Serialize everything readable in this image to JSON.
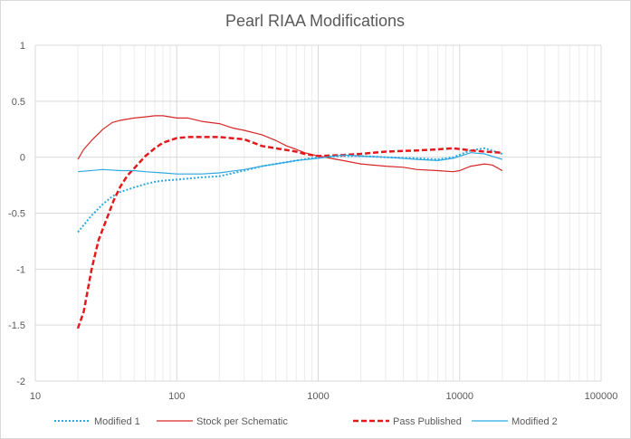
{
  "chart_data": {
    "type": "line",
    "title": "Pearl RIAA Modifications",
    "x_scale": "log",
    "xlim": [
      10,
      100000
    ],
    "ylim": [
      -2,
      1
    ],
    "x_ticks": [
      10,
      100,
      1000,
      10000,
      100000
    ],
    "x_tick_labels": [
      "10",
      "100",
      "1000",
      "10000",
      "100000"
    ],
    "y_ticks": [
      1,
      0.5,
      0,
      -0.5,
      -1,
      -1.5,
      -2
    ],
    "y_tick_labels": [
      "1",
      "0.5",
      "0",
      "-0.5",
      "-1",
      "-1.5",
      "-2"
    ],
    "grid": "major and minor vertical, major horizontal",
    "legend_position": "bottom",
    "series": [
      {
        "name": "Modified 1",
        "color": "#2fa8e0",
        "style": "dotted",
        "points": [
          [
            20,
            -0.67
          ],
          [
            25,
            -0.52
          ],
          [
            30,
            -0.42
          ],
          [
            35,
            -0.35
          ],
          [
            40,
            -0.31
          ],
          [
            50,
            -0.27
          ],
          [
            60,
            -0.24
          ],
          [
            70,
            -0.22
          ],
          [
            80,
            -0.21
          ],
          [
            100,
            -0.2
          ],
          [
            150,
            -0.18
          ],
          [
            200,
            -0.17
          ],
          [
            300,
            -0.12
          ],
          [
            400,
            -0.08
          ],
          [
            500,
            -0.06
          ],
          [
            700,
            -0.03
          ],
          [
            1000,
            0.0
          ],
          [
            1500,
            0.01
          ],
          [
            2000,
            0.01
          ],
          [
            3000,
            0.0
          ],
          [
            5000,
            -0.01
          ],
          [
            7000,
            -0.02
          ],
          [
            9000,
            0.0
          ],
          [
            12000,
            0.06
          ],
          [
            15000,
            0.08
          ],
          [
            20000,
            0.03
          ]
        ]
      },
      {
        "name": "Stock per Schematic",
        "color": "#d62728",
        "style": "solid",
        "points": [
          [
            20,
            -0.02
          ],
          [
            22,
            0.07
          ],
          [
            25,
            0.15
          ],
          [
            30,
            0.25
          ],
          [
            35,
            0.31
          ],
          [
            40,
            0.33
          ],
          [
            50,
            0.35
          ],
          [
            60,
            0.36
          ],
          [
            70,
            0.37
          ],
          [
            80,
            0.37
          ],
          [
            100,
            0.35
          ],
          [
            120,
            0.35
          ],
          [
            150,
            0.32
          ],
          [
            200,
            0.3
          ],
          [
            250,
            0.26
          ],
          [
            300,
            0.24
          ],
          [
            400,
            0.2
          ],
          [
            500,
            0.15
          ],
          [
            600,
            0.1
          ],
          [
            700,
            0.07
          ],
          [
            800,
            0.04
          ],
          [
            1000,
            0.01
          ],
          [
            1500,
            -0.03
          ],
          [
            2000,
            -0.06
          ],
          [
            3000,
            -0.08
          ],
          [
            4000,
            -0.09
          ],
          [
            5000,
            -0.11
          ],
          [
            7000,
            -0.12
          ],
          [
            9000,
            -0.13
          ],
          [
            10000,
            -0.12
          ],
          [
            12000,
            -0.08
          ],
          [
            15000,
            -0.06
          ],
          [
            17000,
            -0.07
          ],
          [
            20000,
            -0.12
          ]
        ]
      },
      {
        "name": "Pass Published",
        "color": "#e31a1c",
        "style": "dashed",
        "points": [
          [
            20,
            -1.53
          ],
          [
            22,
            -1.38
          ],
          [
            25,
            -1.0
          ],
          [
            28,
            -0.74
          ],
          [
            32,
            -0.55
          ],
          [
            36,
            -0.38
          ],
          [
            40,
            -0.26
          ],
          [
            45,
            -0.16
          ],
          [
            50,
            -0.1
          ],
          [
            60,
            0.01
          ],
          [
            70,
            0.08
          ],
          [
            80,
            0.13
          ],
          [
            100,
            0.17
          ],
          [
            120,
            0.18
          ],
          [
            150,
            0.18
          ],
          [
            200,
            0.18
          ],
          [
            300,
            0.16
          ],
          [
            400,
            0.1
          ],
          [
            500,
            0.08
          ],
          [
            700,
            0.05
          ],
          [
            800,
            0.03
          ],
          [
            1000,
            0.01
          ],
          [
            1500,
            0.02
          ],
          [
            2000,
            0.03
          ],
          [
            3000,
            0.05
          ],
          [
            5000,
            0.06
          ],
          [
            7000,
            0.07
          ],
          [
            9000,
            0.08
          ],
          [
            12000,
            0.06
          ],
          [
            15000,
            0.05
          ],
          [
            20000,
            0.04
          ]
        ]
      },
      {
        "name": "Modified 2",
        "color": "#2fa8e0",
        "style": "solid",
        "points": [
          [
            20,
            -0.13
          ],
          [
            30,
            -0.11
          ],
          [
            40,
            -0.12
          ],
          [
            50,
            -0.12
          ],
          [
            60,
            -0.13
          ],
          [
            80,
            -0.14
          ],
          [
            100,
            -0.15
          ],
          [
            150,
            -0.15
          ],
          [
            200,
            -0.14
          ],
          [
            300,
            -0.11
          ],
          [
            400,
            -0.08
          ],
          [
            500,
            -0.06
          ],
          [
            700,
            -0.03
          ],
          [
            1000,
            -0.01
          ],
          [
            1500,
            0.02
          ],
          [
            2000,
            0.01
          ],
          [
            3000,
            0.0
          ],
          [
            5000,
            -0.02
          ],
          [
            7000,
            -0.03
          ],
          [
            9000,
            -0.01
          ],
          [
            12000,
            0.04
          ],
          [
            15000,
            0.03
          ],
          [
            20000,
            -0.02
          ]
        ]
      }
    ]
  }
}
